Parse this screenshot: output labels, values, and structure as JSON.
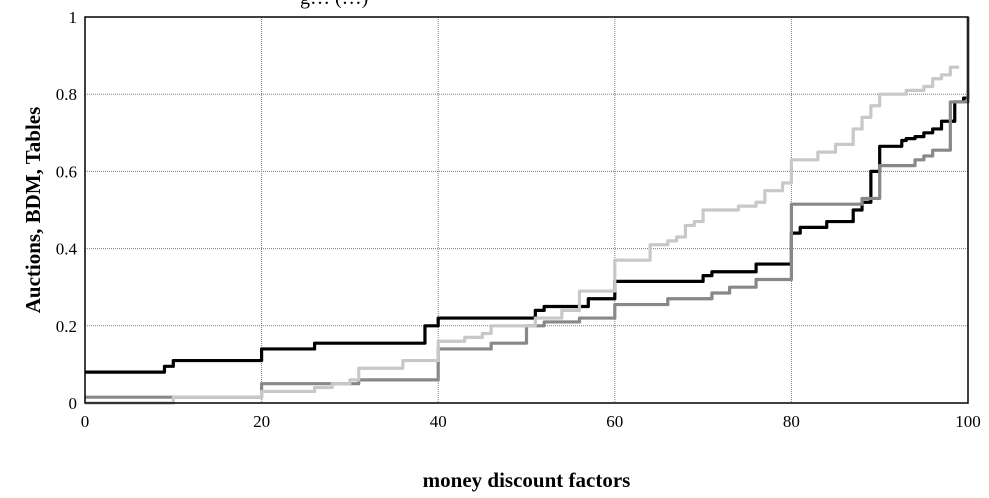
{
  "chart_data": {
    "type": "line",
    "title": "",
    "top_text": "g… (…)",
    "xlabel": "money discount factors",
    "ylabel": "Auctions, BDM, Tables",
    "xlim": [
      0,
      100
    ],
    "ylim": [
      0,
      1
    ],
    "x_ticks": [
      "0",
      "20",
      "40",
      "60",
      "80",
      "100"
    ],
    "y_ticks": [
      "0",
      "0.2",
      "0.4",
      "0.6",
      "0.8",
      "1"
    ],
    "x_tick_values": [
      0,
      20,
      40,
      60,
      80,
      100
    ],
    "y_tick_values": [
      0,
      0.2,
      0.4,
      0.6,
      0.8,
      1
    ],
    "grid": true,
    "legend": "none",
    "series": [
      {
        "color": "#000000",
        "step": true,
        "points": [
          [
            0,
            0.08
          ],
          [
            3,
            0.08
          ],
          [
            9,
            0.095
          ],
          [
            10,
            0.11
          ],
          [
            18,
            0.11
          ],
          [
            20,
            0.14
          ],
          [
            25,
            0.14
          ],
          [
            26,
            0.155
          ],
          [
            38,
            0.155
          ],
          [
            38.5,
            0.2
          ],
          [
            40,
            0.2
          ],
          [
            40,
            0.22
          ],
          [
            50,
            0.22
          ],
          [
            51,
            0.24
          ],
          [
            52,
            0.25
          ],
          [
            56,
            0.25
          ],
          [
            57,
            0.27
          ],
          [
            59,
            0.27
          ],
          [
            60,
            0.29
          ],
          [
            60,
            0.315
          ],
          [
            69,
            0.315
          ],
          [
            70,
            0.33
          ],
          [
            71,
            0.34
          ],
          [
            75,
            0.34
          ],
          [
            76,
            0.36
          ],
          [
            80,
            0.36
          ],
          [
            80,
            0.44
          ],
          [
            81,
            0.455
          ],
          [
            83,
            0.455
          ],
          [
            84,
            0.47
          ],
          [
            86,
            0.47
          ],
          [
            87,
            0.5
          ],
          [
            88,
            0.52
          ],
          [
            89,
            0.6
          ],
          [
            90,
            0.665
          ],
          [
            92,
            0.665
          ],
          [
            92.5,
            0.68
          ],
          [
            93,
            0.685
          ],
          [
            94,
            0.69
          ],
          [
            95,
            0.7
          ],
          [
            96,
            0.71
          ],
          [
            97,
            0.73
          ],
          [
            98,
            0.73
          ],
          [
            98.5,
            0.78
          ],
          [
            99.5,
            0.79
          ],
          [
            100,
            0.81
          ]
        ]
      },
      {
        "color": "#888888",
        "step": true,
        "points": [
          [
            0,
            0.015
          ],
          [
            18,
            0.015
          ],
          [
            20,
            0.05
          ],
          [
            31,
            0.05
          ],
          [
            31,
            0.06
          ],
          [
            40,
            0.06
          ],
          [
            40,
            0.14
          ],
          [
            45,
            0.14
          ],
          [
            46,
            0.155
          ],
          [
            50,
            0.155
          ],
          [
            50,
            0.2
          ],
          [
            52,
            0.21
          ],
          [
            56,
            0.22
          ],
          [
            60,
            0.22
          ],
          [
            60,
            0.255
          ],
          [
            66,
            0.255
          ],
          [
            66,
            0.27
          ],
          [
            70,
            0.27
          ],
          [
            71,
            0.285
          ],
          [
            73,
            0.3
          ],
          [
            76,
            0.32
          ],
          [
            80,
            0.32
          ],
          [
            80,
            0.515
          ],
          [
            85,
            0.515
          ],
          [
            87,
            0.515
          ],
          [
            88,
            0.53
          ],
          [
            90,
            0.615
          ],
          [
            93,
            0.615
          ],
          [
            94,
            0.63
          ],
          [
            95,
            0.64
          ],
          [
            96,
            0.655
          ],
          [
            98,
            0.655
          ],
          [
            98,
            0.78
          ],
          [
            100,
            0.78
          ],
          [
            100,
            1.0
          ]
        ]
      },
      {
        "color": "#c8c8c8",
        "step": true,
        "points": [
          [
            0,
            0.0
          ],
          [
            9,
            0.0
          ],
          [
            10,
            0.015
          ],
          [
            18,
            0.015
          ],
          [
            20,
            0.015
          ],
          [
            20,
            0.03
          ],
          [
            26,
            0.04
          ],
          [
            28,
            0.05
          ],
          [
            30,
            0.06
          ],
          [
            31,
            0.09
          ],
          [
            35,
            0.09
          ],
          [
            36,
            0.11
          ],
          [
            40,
            0.11
          ],
          [
            40,
            0.16
          ],
          [
            43,
            0.17
          ],
          [
            45,
            0.18
          ],
          [
            46,
            0.2
          ],
          [
            50,
            0.2
          ],
          [
            51,
            0.22
          ],
          [
            54,
            0.24
          ],
          [
            56,
            0.29
          ],
          [
            59,
            0.29
          ],
          [
            60,
            0.29
          ],
          [
            60,
            0.37
          ],
          [
            63,
            0.37
          ],
          [
            64,
            0.41
          ],
          [
            66,
            0.42
          ],
          [
            67,
            0.43
          ],
          [
            68,
            0.46
          ],
          [
            69,
            0.47
          ],
          [
            70,
            0.5
          ],
          [
            73,
            0.5
          ],
          [
            74,
            0.51
          ],
          [
            76,
            0.52
          ],
          [
            77,
            0.55
          ],
          [
            79,
            0.57
          ],
          [
            80,
            0.57
          ],
          [
            80,
            0.63
          ],
          [
            82,
            0.63
          ],
          [
            83,
            0.65
          ],
          [
            85,
            0.67
          ],
          [
            87,
            0.71
          ],
          [
            88,
            0.74
          ],
          [
            89,
            0.77
          ],
          [
            90,
            0.8
          ],
          [
            92,
            0.8
          ],
          [
            93,
            0.81
          ],
          [
            95,
            0.82
          ],
          [
            96,
            0.84
          ],
          [
            97,
            0.85
          ],
          [
            98,
            0.87
          ],
          [
            99,
            0.87
          ]
        ]
      }
    ]
  }
}
